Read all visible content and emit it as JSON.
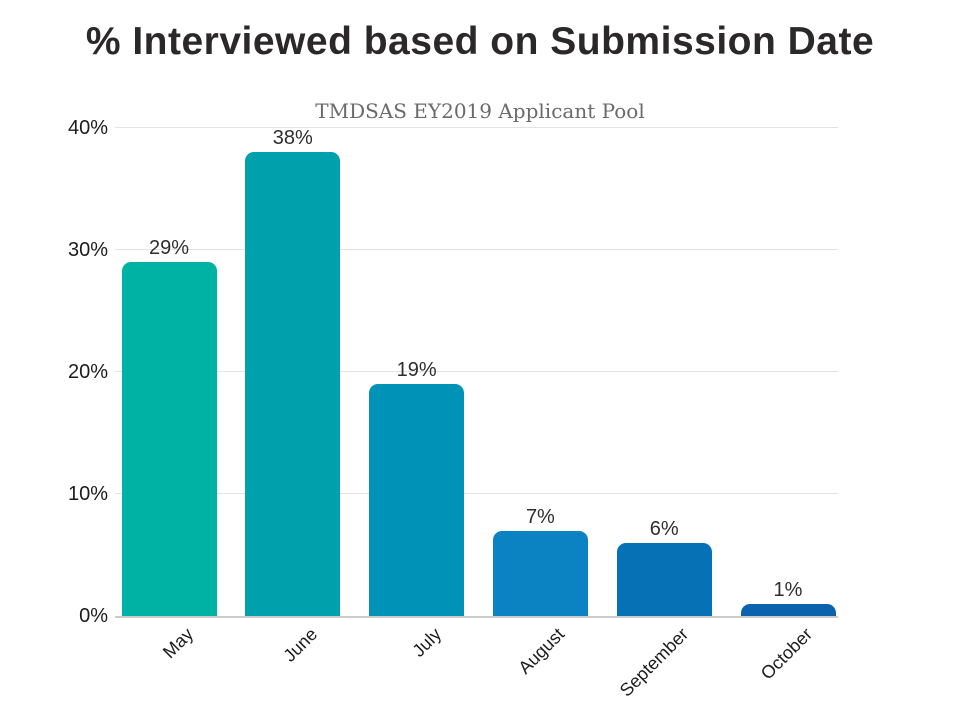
{
  "title": "% Interviewed based on Submission Date",
  "subtitle": "TMDSAS EY2019 Applicant Pool",
  "colors": {
    "background": "#ffffff",
    "title_text": "#2b2829",
    "subtitle_text": "#6a6a6a",
    "gridline": "#e3e3e3",
    "baseline": "#cccccc",
    "tick_label": "#1c1c1c",
    "value_label": "#2e2e2e"
  },
  "chart_data": {
    "type": "bar",
    "title": "% Interviewed based on Submission Date",
    "subtitle": "TMDSAS EY2019 Applicant Pool",
    "categories": [
      "May",
      "June",
      "July",
      "August",
      "September",
      "October"
    ],
    "values": [
      29,
      38,
      19,
      7,
      6,
      1
    ],
    "value_labels": [
      "29%",
      "38%",
      "19%",
      "7%",
      "6%",
      "1%"
    ],
    "bar_colors": [
      "#00b2a4",
      "#00a0ac",
      "#0093b7",
      "#0b82c2",
      "#0671b5",
      "#0b63ae"
    ],
    "xlabel": "",
    "ylabel": "",
    "ylim": [
      0,
      40
    ],
    "yticks": [
      0,
      10,
      20,
      30,
      40
    ],
    "ytick_labels": [
      "0%",
      "10%",
      "20%",
      "30%",
      "40%"
    ],
    "grid": true,
    "legend": false,
    "x_tick_rotation_deg": -45
  }
}
